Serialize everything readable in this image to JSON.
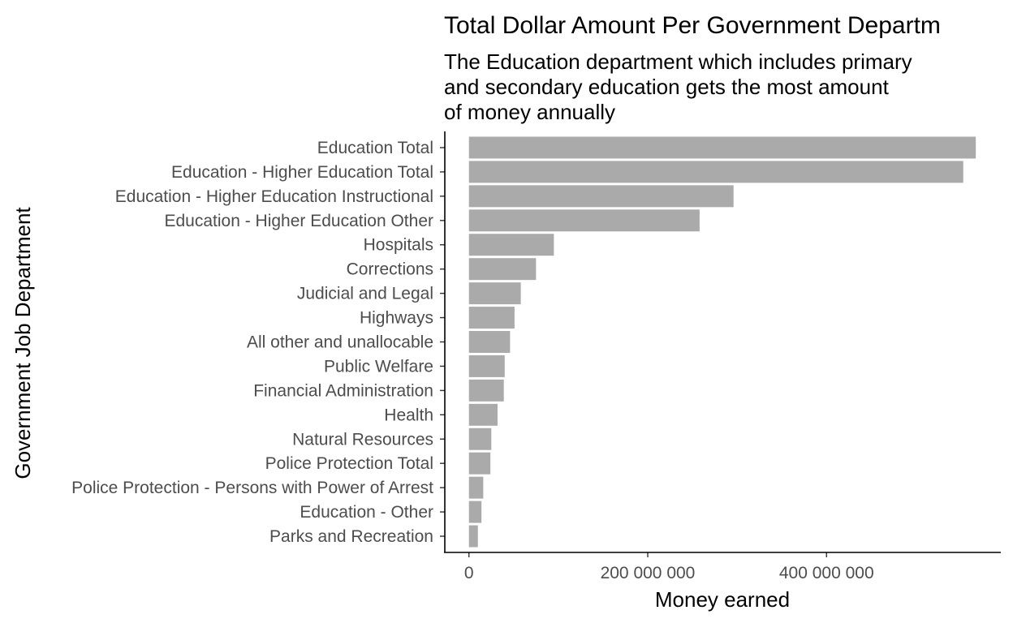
{
  "chart_data": {
    "type": "bar",
    "orientation": "horizontal",
    "title": "Total Dollar Amount Per Government Departm",
    "subtitle": [
      "The Education department which includes primary",
      "and secondary education gets the most amount",
      "of money annually"
    ],
    "xlabel": "Money earned",
    "ylabel": "Government Job Department",
    "categories": [
      "Education Total",
      "Education - Higher Education Total",
      "Education - Higher Education Instructional",
      "Education - Higher Education Other",
      "Hospitals",
      "Corrections",
      "Judicial and Legal",
      "Highways",
      "All other and unallocable",
      "Public Welfare",
      "Financial Administration",
      "Health",
      "Natural Resources",
      "Police Protection Total",
      "Police Protection - Persons with Power of Arrest",
      "Education - Other",
      "Parks and Recreation"
    ],
    "values": [
      567000000,
      553000000,
      296000000,
      258000000,
      95000000,
      75000000,
      58000000,
      51000000,
      46000000,
      40000000,
      39000000,
      32000000,
      25000000,
      24000000,
      16000000,
      14000000,
      10000000
    ],
    "xticks": [
      0,
      200000000,
      400000000
    ],
    "xtick_labels": [
      "0",
      "200 000 000",
      "400 000 000"
    ],
    "xlim": [
      -27000000,
      595000000
    ],
    "bar_color": "#aaaaaa",
    "grid": false,
    "legend": "none"
  }
}
